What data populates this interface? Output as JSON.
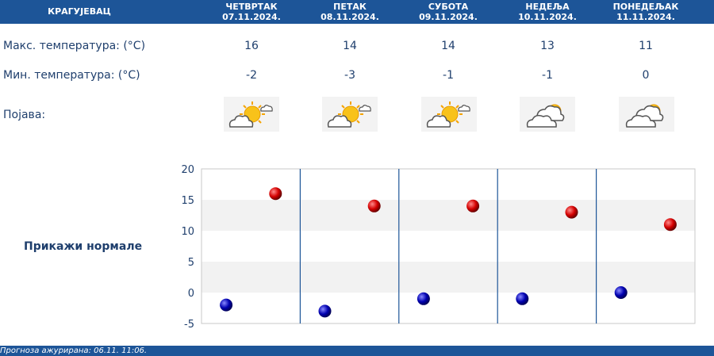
{
  "header": {
    "city": "КРАГУЈЕВАЦ",
    "days": [
      {
        "name": "ЧЕТВРТАК",
        "date": "07.11.2024."
      },
      {
        "name": "ПЕТАК",
        "date": "08.11.2024."
      },
      {
        "name": "СУБОТА",
        "date": "09.11.2024."
      },
      {
        "name": "НЕДЕЉА",
        "date": "10.11.2024."
      },
      {
        "name": "ПОНЕДЕЉАК",
        "date": "11.11.2024."
      }
    ]
  },
  "rows": {
    "max_label": "Макс. температура: (°C)",
    "min_label": "Мин. температура: (°C)",
    "phenomenon_label": "Појава:",
    "max_values": [
      "16",
      "14",
      "14",
      "13",
      "11"
    ],
    "min_values": [
      "-2",
      "-3",
      "-1",
      "-1",
      "0"
    ],
    "icons": [
      "sun-behind-cloud-icon",
      "sun-behind-cloud-icon",
      "sun-behind-cloud-icon",
      "cloudy-partly-sunny-icon",
      "cloudy-partly-sunny-icon"
    ]
  },
  "normals_link": "Прикажи нормале",
  "footer": "Прогноза ажурирана:  06.11. 11:06.",
  "colors": {
    "header_bg": "#1d5598",
    "text": "#1f3f6d",
    "max_marker": "#d40000",
    "min_marker": "#0000b0",
    "band": "#f2f2f2"
  },
  "chart_data": {
    "type": "scatter",
    "categories": [
      "ЧЕТВРТАК",
      "ПЕТАК",
      "СУБОТА",
      "НЕДЕЉА",
      "ПОНЕДЕЉАК"
    ],
    "series": [
      {
        "values": [
          16,
          14,
          14,
          13,
          11
        ],
        "color": "#d40000"
      },
      {
        "values": [
          -2,
          -3,
          -1,
          -1,
          0
        ],
        "color": "#0000b0"
      }
    ],
    "ylim": [
      -5,
      20
    ],
    "yticks": [
      "20",
      "15",
      "10",
      "5",
      "0",
      "-5"
    ],
    "grid": "alternating bands"
  }
}
